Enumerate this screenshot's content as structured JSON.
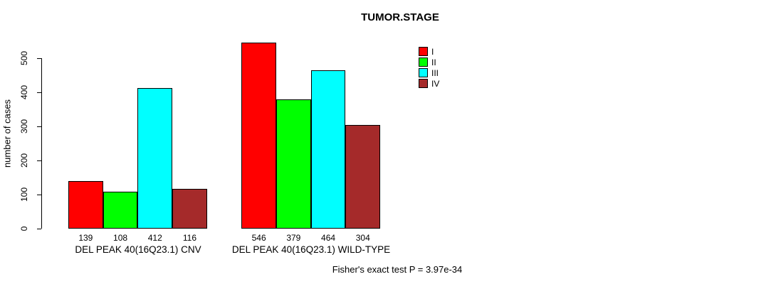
{
  "chart_data": {
    "type": "bar",
    "title": "TUMOR.STAGE",
    "xlabel": "",
    "ylabel": "number of cases",
    "ylim": [
      0,
      560
    ],
    "yticks": [
      0,
      100,
      200,
      300,
      400,
      500
    ],
    "grid": false,
    "legend_position": "top-right",
    "bar_value_labels": true,
    "categories": [
      "DEL PEAK 40(16Q23.1) CNV",
      "DEL PEAK 40(16Q23.1) WILD-TYPE"
    ],
    "series": [
      {
        "name": "I",
        "color": "#FF0000",
        "values": [
          139,
          546
        ]
      },
      {
        "name": "II",
        "color": "#00FF00",
        "values": [
          108,
          379
        ]
      },
      {
        "name": "III",
        "color": "#00FFFF",
        "values": [
          412,
          464
        ]
      },
      {
        "name": "IV",
        "color": "#A52A2A",
        "values": [
          116,
          304
        ]
      }
    ],
    "annotation": "Fisher's exact test P = 3.97e-34"
  }
}
